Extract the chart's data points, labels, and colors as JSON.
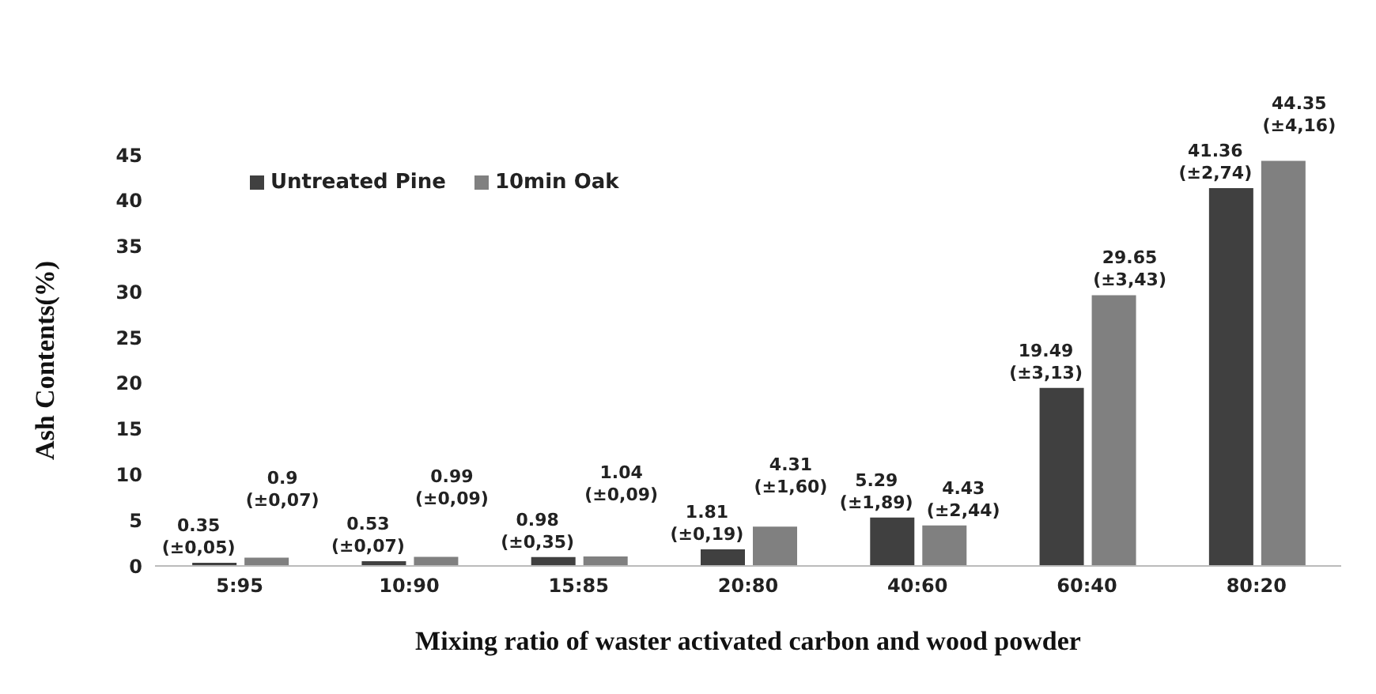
{
  "chart_data": {
    "type": "bar",
    "xlabel": "Mixing ratio of waster activated carbon and wood powder",
    "ylabel": "Ash Contents(%)",
    "categories": [
      "5:95",
      "10:90",
      "15:85",
      "20:80",
      "40:60",
      "60:40",
      "80:20"
    ],
    "series": [
      {
        "name": "Untreated Pine",
        "color": "#404040",
        "values": [
          0.35,
          0.53,
          0.98,
          1.81,
          5.29,
          19.49,
          41.36
        ],
        "value_labels": [
          "0.35\n(±0,05)",
          "0.53\n(±0,07)",
          "0.98\n(±0,35)",
          "1.81\n(±0,19)",
          "5.29\n(±1,89)",
          "19.49\n(±3,13)",
          "41.36\n(±2,74)"
        ]
      },
      {
        "name": "10min Oak",
        "color": "#808080",
        "values": [
          0.9,
          0.99,
          1.04,
          4.31,
          4.43,
          29.65,
          44.35
        ],
        "value_labels": [
          "0.9\n(±0,07)",
          "0.99\n(±0,09)",
          "1.04\n(±0,09)",
          "4.31\n(±1,60)",
          "4.43\n(±2,44)",
          "29.65\n(±3,43)",
          "44.35\n(±4,16)"
        ]
      }
    ],
    "ylim": [
      0,
      45
    ],
    "yticks": [
      0,
      5,
      10,
      15,
      20,
      25,
      30,
      35,
      40,
      45
    ],
    "grid": false,
    "legend": "top left"
  }
}
